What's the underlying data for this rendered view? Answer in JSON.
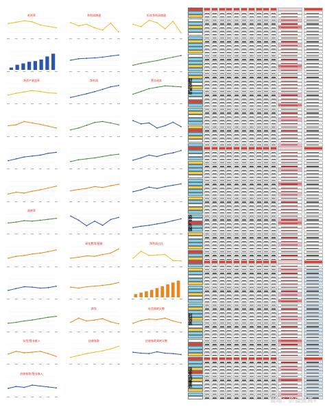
{
  "charts": [
    {
      "title": "毛利率",
      "type": "line",
      "values": [
        58,
        64,
        70,
        66,
        52,
        46,
        40
      ],
      "color": "#e8c020"
    },
    {
      "title": "净利润增速",
      "type": "line",
      "values": [
        62,
        48,
        55,
        40,
        30,
        60,
        22
      ],
      "color": "#e8c020"
    },
    {
      "title": "扣非净利润增速",
      "type": "line",
      "values": [
        55,
        45,
        72,
        62,
        35,
        68,
        18
      ],
      "color": "#e8c020"
    },
    {
      "title": "",
      "type": "bar",
      "values": [
        10,
        22,
        28,
        35,
        38,
        45,
        58,
        70
      ],
      "color": "#2a57a8"
    },
    {
      "title": "",
      "type": "line",
      "values": [
        42,
        48,
        50,
        52,
        55,
        60,
        64
      ],
      "color": "#2a57a8"
    },
    {
      "title": "",
      "type": "line",
      "values": [
        20,
        28,
        34,
        40,
        48,
        55,
        62
      ],
      "color": "#4a8a3a"
    },
    {
      "title": "净资产收益率",
      "type": "line",
      "values": [
        30,
        38,
        44,
        50,
        46,
        40,
        38
      ],
      "color": "#e8c020"
    },
    {
      "title": "净利润",
      "type": "line",
      "values": [
        20,
        28,
        36,
        45,
        55,
        66,
        72
      ],
      "color": "#2a57a8"
    },
    {
      "title": "营业成本",
      "type": "line",
      "values": [
        34,
        46,
        58,
        64,
        70,
        68,
        66
      ],
      "color": "#4a8a3a"
    },
    {
      "title": "",
      "type": "line",
      "values": [
        40,
        44,
        58,
        52,
        46,
        38,
        30
      ],
      "color": "#e8871e"
    },
    {
      "title": "",
      "type": "line",
      "values": [
        22,
        30,
        42,
        54,
        58,
        52,
        44
      ],
      "color": "#4a8a3a"
    },
    {
      "title": "",
      "type": "line",
      "values": [
        62,
        48,
        52,
        30,
        40,
        55,
        36
      ],
      "color": "#2a57a8"
    },
    {
      "title": "",
      "type": "line",
      "values": [
        28,
        36,
        44,
        48,
        52,
        60,
        64
      ],
      "color": "#2a57a8"
    },
    {
      "title": "",
      "type": "line",
      "values": [
        24,
        32,
        36,
        40,
        46,
        52,
        56
      ],
      "color": "#4a8a3a"
    },
    {
      "title": "",
      "type": "line",
      "values": [
        30,
        40,
        52,
        46,
        56,
        62,
        72
      ],
      "color": "#2a57a8"
    },
    {
      "title": "",
      "type": "line",
      "values": [
        26,
        34,
        30,
        38,
        44,
        52,
        60
      ],
      "color": "#e8871e"
    },
    {
      "title": "",
      "type": "line",
      "values": [
        40,
        46,
        50,
        58,
        54,
        62,
        68
      ],
      "color": "#e8871e"
    },
    {
      "title": "",
      "type": "line",
      "values": [
        36,
        44,
        56,
        50,
        58,
        64,
        70
      ],
      "color": "#2a57a8"
    },
    {
      "title": "周转率",
      "type": "line",
      "values": [
        40,
        44,
        50,
        48,
        52,
        56,
        60
      ],
      "color": "#4a8a3a"
    },
    {
      "title": "",
      "type": "line",
      "values": [
        70,
        52,
        28,
        48,
        30,
        55,
        64
      ],
      "color": "#2a57a8"
    },
    {
      "title": "",
      "type": "line",
      "values": [
        20,
        26,
        30,
        36,
        42,
        50,
        58
      ],
      "color": "#2a57a8"
    },
    {
      "title": "",
      "type": "line",
      "values": [
        30,
        38,
        42,
        48,
        52,
        58,
        66
      ],
      "color": "#e8871e"
    },
    {
      "title": "研发费用/营收",
      "type": "line",
      "values": [
        30,
        34,
        40,
        38,
        46,
        52,
        70
      ],
      "color": "#e8871e"
    },
    {
      "title": "净利润占比",
      "type": "line",
      "values": [
        30,
        60,
        42,
        44,
        46,
        20,
        18
      ],
      "color": "#e8c020"
    },
    {
      "title": "",
      "type": "line",
      "values": [
        30,
        38,
        46,
        44,
        40,
        42,
        48
      ],
      "color": "#2a57a8"
    },
    {
      "title": "",
      "type": "line",
      "values": [
        44,
        40,
        46,
        48,
        52,
        56,
        64
      ],
      "color": "#e8871e"
    },
    {
      "title": "",
      "type": "bar",
      "values": [
        14,
        20,
        26,
        32,
        40,
        48,
        56,
        64,
        72
      ],
      "color": "#e8871e"
    },
    {
      "title": "",
      "type": "line",
      "values": [
        30,
        34,
        40,
        44,
        50,
        56,
        60
      ],
      "color": "#4a8a3a"
    },
    {
      "title": "库存",
      "type": "line",
      "values": [
        34,
        52,
        40,
        44,
        50,
        36,
        28
      ],
      "color": "#e8871e"
    },
    {
      "title": "存货周转天数",
      "type": "line",
      "values": [
        30,
        42,
        48,
        46,
        52,
        40,
        32
      ],
      "color": "#e8871e"
    },
    {
      "title": "存货/营业收入",
      "type": "line",
      "values": [
        36,
        48,
        42,
        44,
        48,
        38,
        26
      ],
      "color": "#e8871e"
    },
    {
      "title": "应收账款",
      "type": "line",
      "values": [
        22,
        30,
        38,
        44,
        50,
        58,
        70
      ],
      "color": "#e8c020"
    },
    {
      "title": "应收账款周转天数",
      "type": "line",
      "values": [
        44,
        40,
        38,
        46,
        40,
        38,
        34
      ],
      "color": "#2a57a8"
    },
    {
      "title": "应收账款/营业收入",
      "type": "line",
      "values": [
        30,
        38,
        34,
        44,
        40,
        36,
        32
      ],
      "color": "#2a57a8"
    }
  ],
  "sheet": {
    "sections": [
      {
        "label": "财务指标"
      },
      {
        "label": "资产负债"
      },
      {
        "label": "利润表"
      },
      {
        "label": "现金流量表"
      }
    ],
    "header_color": "#e63b2e",
    "label_colors": [
      "#e63b2e",
      "#7bd3f0",
      "#f0d040",
      "#ffffff",
      "#7bd3f0",
      "#f0d040",
      "#7bd3f0",
      "#ffffff",
      "#7bd3f0",
      "#f0d040",
      "#7bd3f0",
      "#7bd3f0",
      "#f0d040",
      "#ffffff",
      "#7bd3f0",
      "#7bd3f0",
      "#f0d040",
      "#7bd3f0",
      "#7bd3f0",
      "#f0d040",
      "#7bd3f0",
      "#ffffff",
      "#f0d040",
      "#7bd3f0",
      "#7bd3f0",
      "#ffffff",
      "#e63b2e",
      "#7bd3f0",
      "#7bd3f0",
      "#f0d040",
      "#ffffff",
      "#7bd3f0",
      "#7bd3f0",
      "#f0d040"
    ]
  },
  "watermark": "雪球：价值投资v"
}
